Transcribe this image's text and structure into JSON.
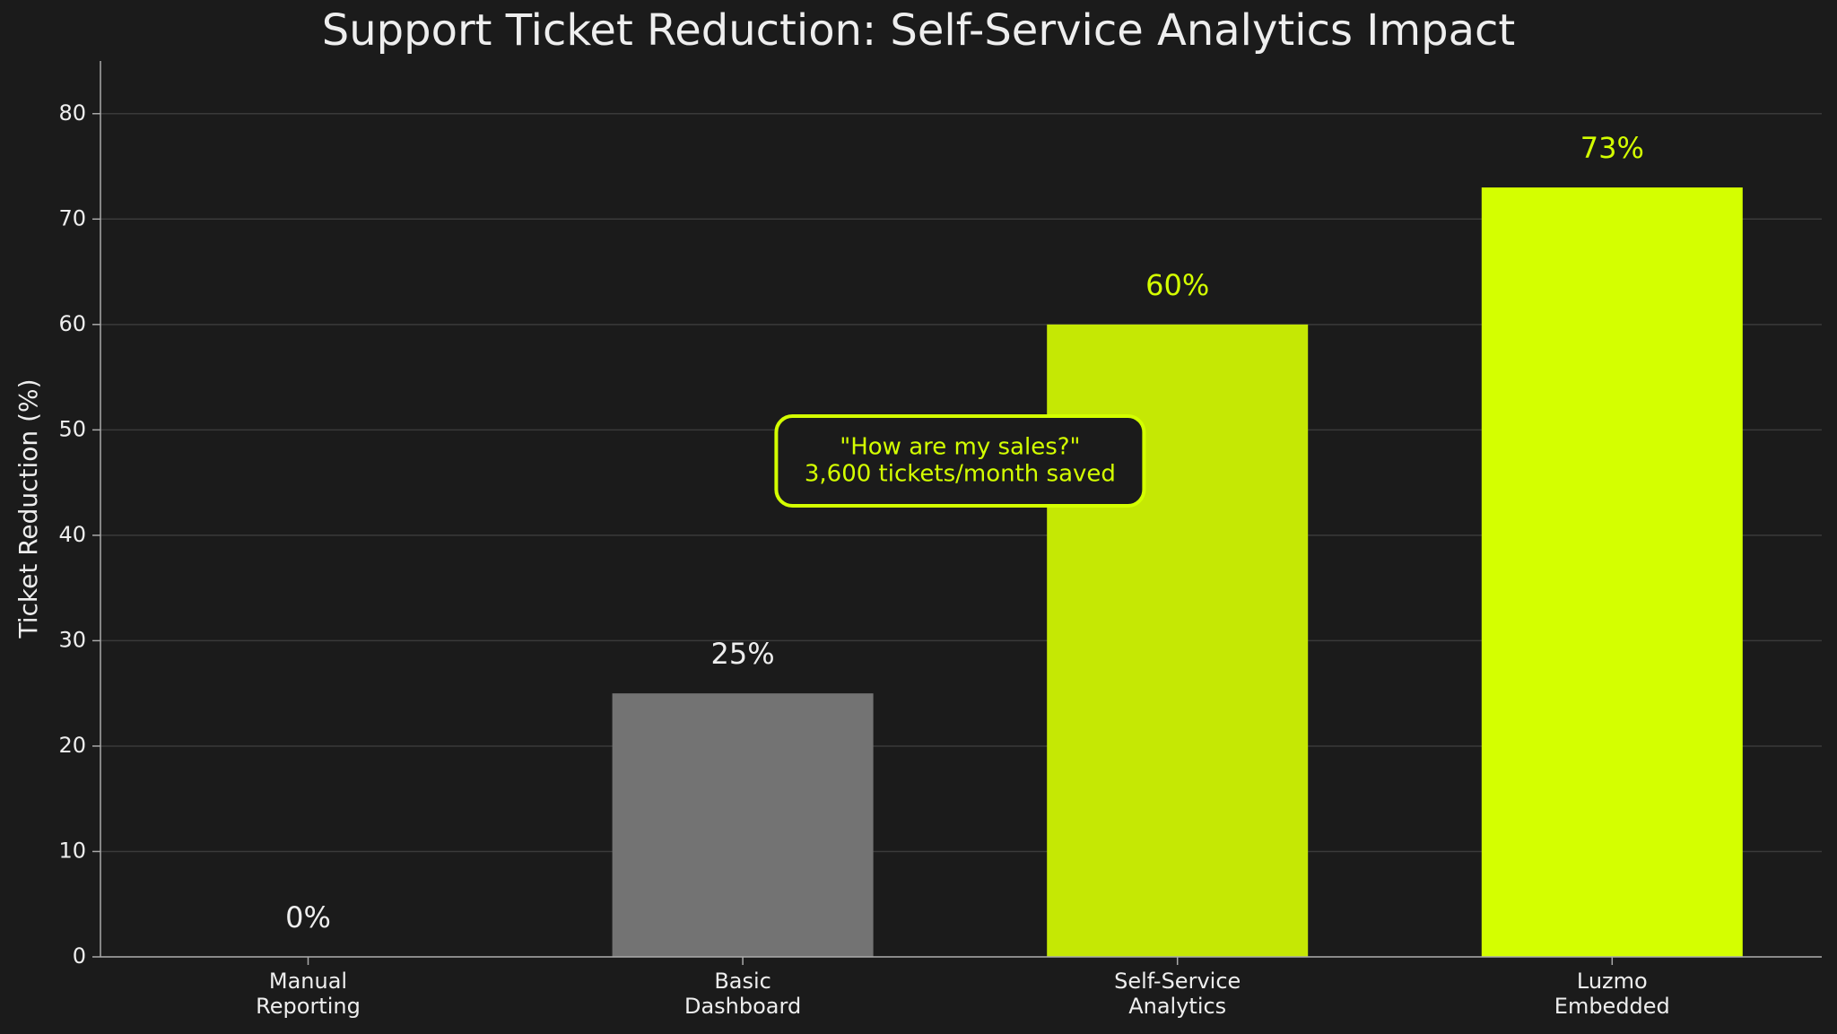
{
  "chart_data": {
    "type": "bar",
    "title": "Support Ticket Reduction: Self-Service Analytics Impact",
    "y_label": "Ticket Reduction (%)",
    "categories": [
      "Manual\nReporting",
      "Basic\nDashboard",
      "Self-Service\nAnalytics",
      "Luzmo\nEmbedded"
    ],
    "values": [
      0,
      25,
      60,
      73
    ],
    "value_labels": [
      "0%",
      "25%",
      "60%",
      "73%"
    ],
    "colors": [
      "#737373",
      "#737373",
      "#c5e804",
      "#d4ff00"
    ],
    "value_label_colors": [
      "#eeeeee",
      "#eeeeee",
      "#d4ff00",
      "#d4ff00"
    ],
    "ylim": [
      0,
      85
    ],
    "yticks": [
      0,
      10,
      20,
      30,
      40,
      50,
      60,
      70,
      80
    ],
    "grid": true,
    "annotation": [
      "\"How are my sales?\"",
      "3,600 tickets/month saved"
    ]
  }
}
